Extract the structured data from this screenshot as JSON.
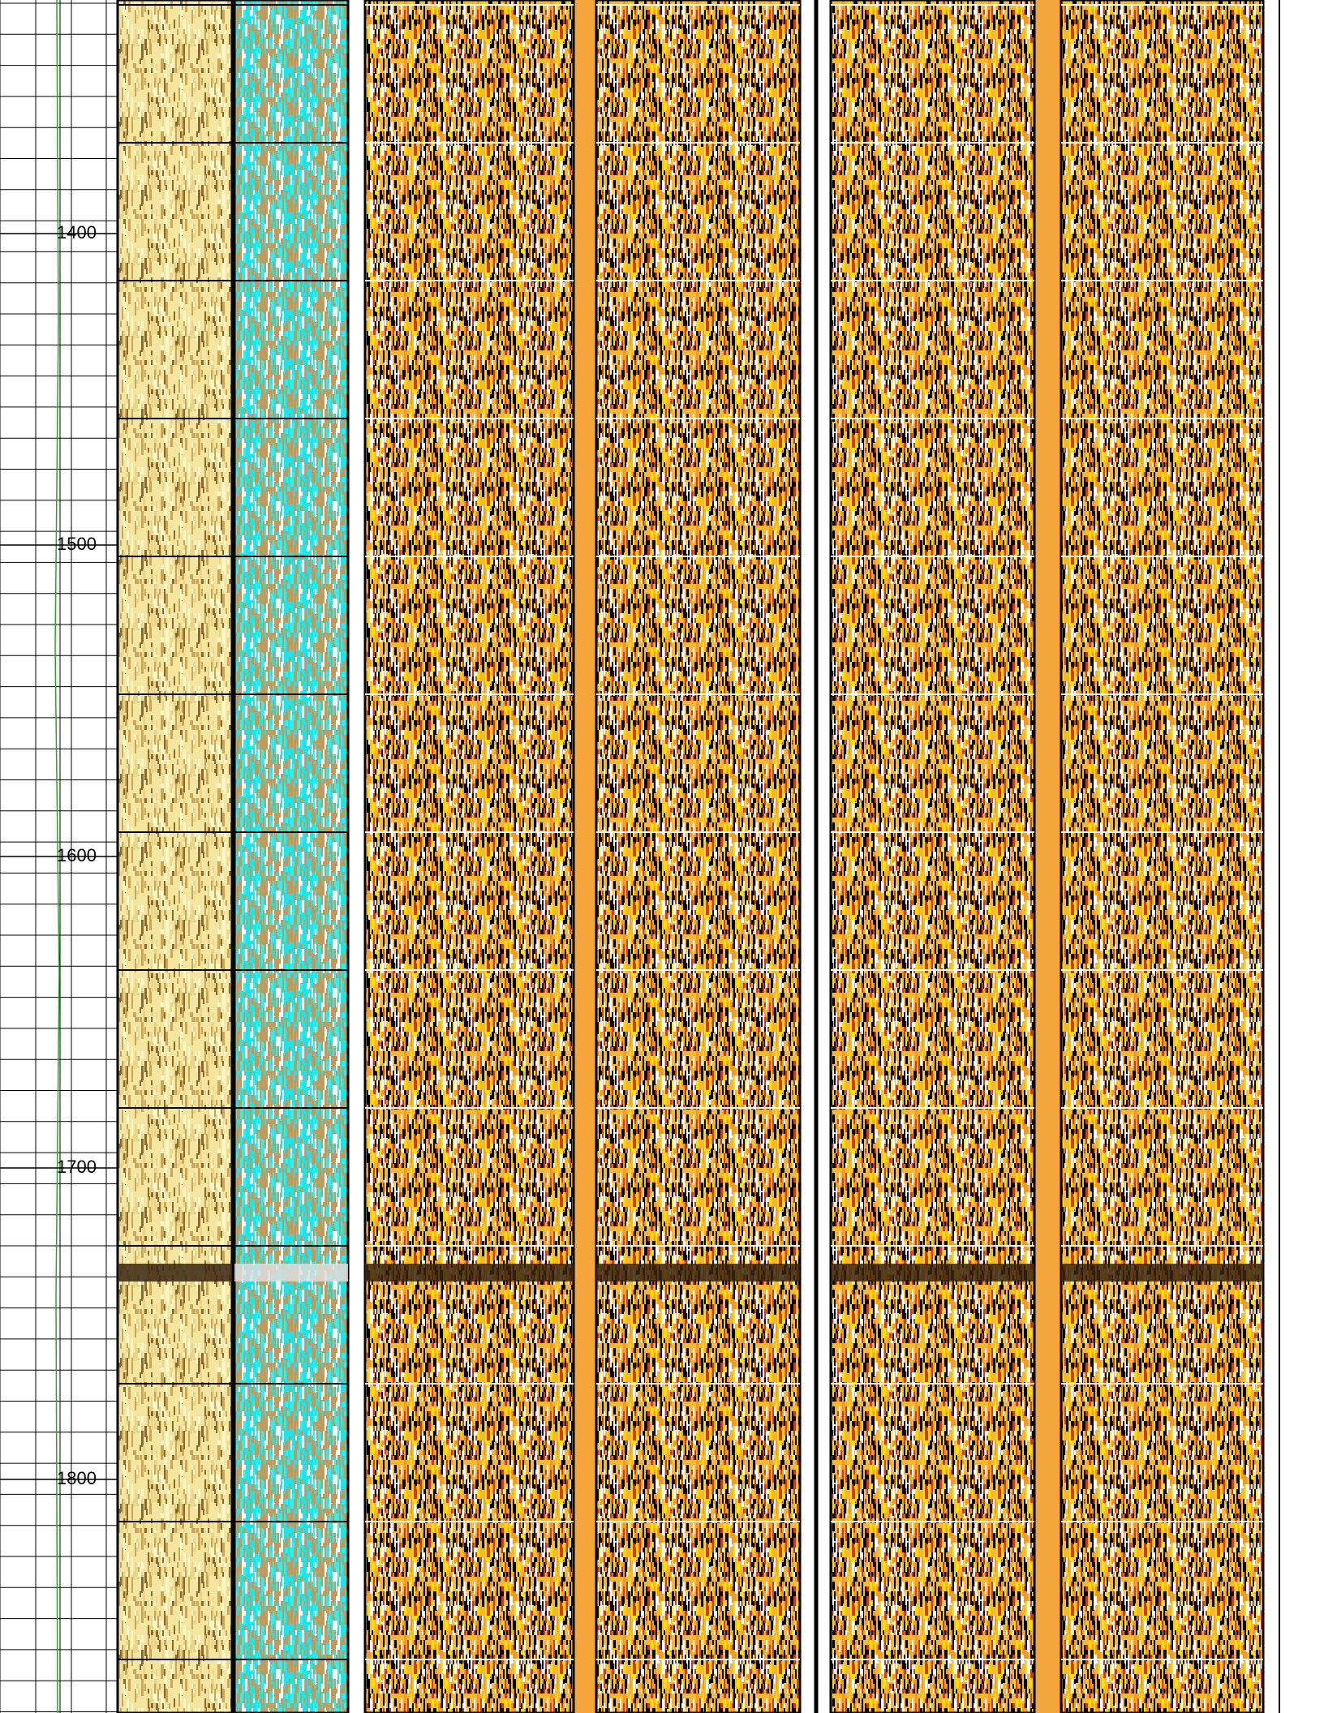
{
  "depth_track": {
    "labels": [
      1400,
      1500,
      1600,
      1700,
      1800
    ],
    "range": [
      1325,
      1875
    ]
  }
}
